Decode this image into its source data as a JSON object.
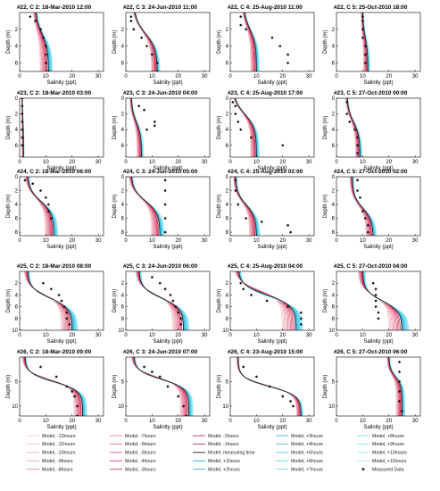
{
  "chart_data": {
    "type": "line",
    "layout": "5x4 grid of salinity depth profiles",
    "xlabel": "Salinity (ppt)",
    "ylabel": "Depth (m)",
    "xlim": [
      0,
      32
    ],
    "xticks": [
      0,
      10,
      20,
      30
    ],
    "grid": false,
    "legend_position": "bottom",
    "rows": [
      {
        "ylim": [
          0,
          7
        ],
        "yticks": [
          2,
          4,
          6
        ]
      },
      {
        "ylim": [
          0,
          7.5
        ],
        "yticks": [
          0,
          2,
          4,
          6
        ]
      },
      {
        "ylim": [
          0,
          8.5
        ],
        "yticks": [
          0,
          2,
          4,
          6,
          8
        ]
      },
      {
        "ylim": [
          0,
          10
        ],
        "yticks": [
          2,
          4,
          6,
          8,
          10
        ]
      },
      {
        "ylim": [
          0,
          12
        ],
        "yticks": [
          5,
          10
        ]
      }
    ],
    "series_colors": {
      "model_before": "#e8869a",
      "model_measuring_time": "#222222",
      "model_after": "#35b6d8",
      "measured": "#111111"
    },
    "panels": [
      {
        "title": "#22, C 2: 18-Mar-2010 12:00",
        "surface_sal": 6,
        "bottom_sal": 11,
        "halocline_depth": 2.5,
        "spread": 3,
        "measured": [
          [
            4,
            0.5
          ],
          [
            6,
            1
          ],
          [
            8,
            2
          ],
          [
            9,
            3
          ],
          [
            10,
            4
          ],
          [
            10,
            5
          ],
          [
            10,
            6
          ],
          [
            11,
            7
          ]
        ]
      },
      {
        "title": "#22, C 3: 24-Jun-2010 11:00",
        "surface_sal": 3,
        "bottom_sal": 12,
        "halocline_depth": 2.5,
        "spread": 2,
        "measured": [
          [
            2,
            0.5
          ],
          [
            2,
            1
          ],
          [
            3,
            2
          ],
          [
            6,
            3
          ],
          [
            8,
            4
          ],
          [
            10,
            5
          ],
          [
            12,
            6
          ],
          [
            12,
            7
          ]
        ]
      },
      {
        "title": "#22, C 4: 25-Aug-2010 11:00",
        "surface_sal": 5,
        "bottom_sal": 10,
        "halocline_depth": 2,
        "spread": 2,
        "measured": [
          [
            4,
            0.5
          ],
          [
            4,
            1.5
          ],
          [
            6,
            2
          ],
          [
            16,
            3
          ],
          [
            19,
            4
          ],
          [
            22,
            5
          ],
          [
            22,
            6
          ]
        ]
      },
      {
        "title": "#22, C 5: 25-Oct-2010 18:00",
        "surface_sal": 10,
        "bottom_sal": 12,
        "halocline_depth": 3,
        "spread": 1.5,
        "measured": [
          [
            10,
            0.5
          ],
          [
            10,
            1
          ],
          [
            10,
            2
          ],
          [
            10,
            3
          ],
          [
            11,
            4
          ],
          [
            11,
            5
          ],
          [
            11,
            6
          ]
        ]
      },
      {
        "title": "#23, C 2: 18-Mar-2010 03:00",
        "surface_sal": 1,
        "bottom_sal": 1.5,
        "halocline_depth": 3,
        "spread": 0.3,
        "measured": [
          [
            1,
            0
          ],
          [
            1,
            1
          ],
          [
            1,
            2
          ],
          [
            1,
            3
          ],
          [
            1,
            4
          ],
          [
            1,
            5
          ],
          [
            1,
            6
          ]
        ]
      },
      {
        "title": "#23, C 3: 24-Jun-2010 04:00",
        "surface_sal": 2,
        "bottom_sal": 6,
        "halocline_depth": 3,
        "spread": 1.5,
        "measured": [
          [
            5,
            1
          ],
          [
            7,
            1.5
          ],
          [
            11,
            3
          ],
          [
            11,
            3.5
          ],
          [
            8,
            4
          ]
        ]
      },
      {
        "title": "#23, C 4: 25-Aug-2010 17:00",
        "surface_sal": 1,
        "bottom_sal": 10,
        "halocline_depth": 2,
        "spread": 2,
        "measured": [
          [
            1,
            0.5
          ],
          [
            2,
            1
          ],
          [
            2,
            2
          ],
          [
            3,
            3
          ],
          [
            4,
            4
          ],
          [
            8,
            5
          ],
          [
            20,
            6
          ]
        ]
      },
      {
        "title": "#23, C 5: 27-Oct-2010 00:00",
        "surface_sal": 4,
        "bottom_sal": 9,
        "halocline_depth": 3,
        "spread": 1.5,
        "measured": [
          [
            4,
            0.5
          ],
          [
            4,
            2
          ],
          [
            5,
            3
          ],
          [
            7,
            4
          ],
          [
            8,
            5
          ],
          [
            8,
            6
          ],
          [
            8,
            7
          ]
        ]
      },
      {
        "title": "#24, C 2: 18-Mar-2010 06:00",
        "surface_sal": 3,
        "bottom_sal": 13,
        "halocline_depth": 3.5,
        "spread": 3,
        "measured": [
          [
            2,
            0.5
          ],
          [
            5,
            1
          ],
          [
            8,
            2
          ],
          [
            10,
            3
          ],
          [
            11,
            4
          ],
          [
            11,
            5
          ],
          [
            12,
            6
          ]
        ]
      },
      {
        "title": "#24, C 3: 24-Jun-2010 05:00",
        "surface_sal": 2,
        "bottom_sal": 13,
        "halocline_depth": 3.5,
        "spread": 3,
        "measured": [
          [
            15,
            0.5
          ],
          [
            15,
            2
          ],
          [
            15,
            4
          ],
          [
            15,
            6
          ],
          [
            15,
            8
          ]
        ]
      },
      {
        "title": "#24, C 4: 25-Aug-2010 02:00",
        "surface_sal": 2,
        "bottom_sal": 10,
        "halocline_depth": 4,
        "spread": 2.5,
        "measured": [
          [
            2,
            0.5
          ],
          [
            2,
            2
          ],
          [
            3,
            4
          ],
          [
            6,
            6
          ],
          [
            12,
            6.5
          ],
          [
            22,
            7
          ],
          [
            23,
            8
          ]
        ]
      },
      {
        "title": "#24, C 5: 27-Oct-2010 02:00",
        "surface_sal": 6,
        "bottom_sal": 14,
        "halocline_depth": 4.5,
        "spread": 2.5,
        "measured": [
          [
            8,
            0.5
          ],
          [
            8,
            2
          ],
          [
            9,
            3
          ],
          [
            10,
            5
          ],
          [
            11,
            6
          ],
          [
            12,
            7
          ],
          [
            12,
            8
          ]
        ]
      },
      {
        "title": "#25, C 2: 18-Mar-2010 08:00",
        "surface_sal": 3,
        "bottom_sal": 20,
        "halocline_depth": 4.5,
        "spread": 4,
        "measured": [
          [
            9,
            2
          ],
          [
            12,
            3
          ],
          [
            15,
            4
          ],
          [
            16,
            5
          ],
          [
            17,
            6
          ],
          [
            18,
            7
          ],
          [
            18,
            8
          ],
          [
            19,
            9
          ]
        ]
      },
      {
        "title": "#25, C 3: 24-Jun-2010 06:00",
        "surface_sal": 5,
        "bottom_sal": 22,
        "halocline_depth": 4.5,
        "spread": 4,
        "measured": [
          [
            10,
            1
          ],
          [
            13,
            2
          ],
          [
            15,
            3
          ],
          [
            17,
            4
          ],
          [
            18,
            5
          ],
          [
            19,
            6
          ],
          [
            20,
            7
          ],
          [
            21,
            8
          ],
          [
            21,
            9
          ]
        ]
      },
      {
        "title": "#25, C 4: 25-Aug-2010 04:00",
        "surface_sal": 3,
        "bottom_sal": 25,
        "halocline_depth": 4,
        "spread": 5,
        "measured": [
          [
            4,
            2
          ],
          [
            5,
            3
          ],
          [
            8,
            4
          ],
          [
            14,
            5
          ],
          [
            22,
            6
          ],
          [
            27,
            7
          ],
          [
            27,
            8
          ],
          [
            27,
            9
          ]
        ]
      },
      {
        "title": "#25, C 5: 27-Oct-2010 04:00",
        "surface_sal": 10,
        "bottom_sal": 25,
        "halocline_depth": 5,
        "spread": 5,
        "measured": [
          [
            14,
            2
          ],
          [
            15,
            3
          ],
          [
            15,
            4
          ],
          [
            15,
            5
          ],
          [
            15,
            6
          ],
          [
            16,
            7
          ],
          [
            16,
            8
          ]
        ]
      },
      {
        "title": "#26, C 2: 18-Mar-2010 09:00",
        "surface_sal": 2,
        "bottom_sal": 24,
        "halocline_depth": 5,
        "spread": 3,
        "measured": [
          [
            8,
            2
          ],
          [
            14,
            4
          ],
          [
            18,
            6
          ],
          [
            20,
            7
          ],
          [
            21,
            8
          ],
          [
            22,
            10
          ],
          [
            22,
            12
          ]
        ]
      },
      {
        "title": "#26, C 3: 24-Jun-2010 07:00",
        "surface_sal": 3,
        "bottom_sal": 24,
        "halocline_depth": 4.5,
        "spread": 3,
        "measured": [
          [
            7,
            2
          ],
          [
            10,
            3
          ],
          [
            13,
            4
          ],
          [
            16,
            6
          ],
          [
            20,
            8
          ],
          [
            22,
            10
          ],
          [
            23,
            12
          ]
        ]
      },
      {
        "title": "#26, C 4: 23-Aug-2010 15:00",
        "surface_sal": 3,
        "bottom_sal": 27,
        "halocline_depth": 6,
        "spread": 1.5,
        "measured": [
          [
            5,
            2
          ],
          [
            10,
            4
          ],
          [
            15,
            6
          ],
          [
            20,
            8
          ],
          [
            23,
            9
          ],
          [
            24,
            10
          ]
        ]
      },
      {
        "title": "#26, C 5: 27-Oct-2010 06:00",
        "surface_sal": 20,
        "bottom_sal": 25,
        "halocline_depth": 4,
        "spread": 2,
        "measured": [
          [
            24,
            1
          ],
          [
            24,
            3
          ],
          [
            24,
            5
          ],
          [
            24,
            7
          ],
          [
            24,
            9
          ],
          [
            25,
            11
          ]
        ]
      }
    ],
    "legend": [
      "Model, -12hours",
      "Model, -7hours",
      "Model, -2hours",
      "Model, +3hours",
      "Model, +8hours",
      "Model, -11hours",
      "Model, -6hours",
      "Model, -1hours",
      "Model, +4hours",
      "Model, +9hours",
      "Model, -10hours",
      "Model, -5hours",
      "Model, measuring time",
      "Model, +5hours",
      "Model, +10hours",
      "Model, -9hours",
      "Model, -4hours",
      "Model, +1hours",
      "Model, +6hours",
      "Model, +11hours",
      "Model, -8hours",
      "Model, -3hours",
      "Model, +2hours",
      "Model, +7hours",
      "Measured Data"
    ]
  }
}
